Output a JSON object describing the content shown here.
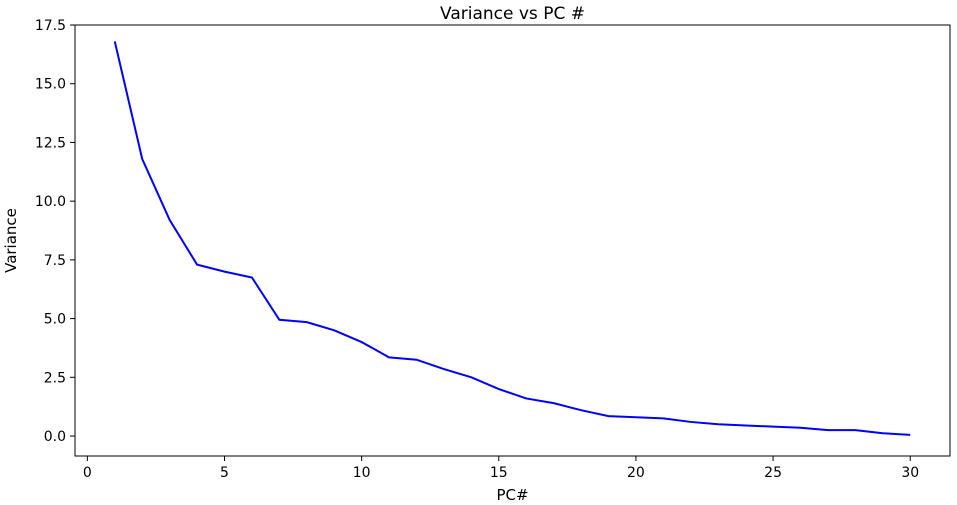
{
  "chart_data": {
    "type": "line",
    "title": "Variance vs PC #",
    "xlabel": "PC#",
    "ylabel": "Variance",
    "xlim": [
      -0.45,
      31.45
    ],
    "ylim": [
      -0.85,
      17.5
    ],
    "xticks": [
      0,
      5,
      10,
      15,
      20,
      25,
      30
    ],
    "yticks": [
      0.0,
      2.5,
      5.0,
      7.5,
      10.0,
      12.5,
      15.0,
      17.5
    ],
    "ytick_labels": [
      "0.0",
      "2.5",
      "5.0",
      "7.5",
      "10.0",
      "12.5",
      "15.0",
      "17.5"
    ],
    "grid": false,
    "series": [
      {
        "color": "#0000ff",
        "x": [
          1,
          2,
          3,
          4,
          5,
          6,
          7,
          8,
          9,
          10,
          11,
          12,
          13,
          14,
          15,
          16,
          17,
          18,
          19,
          20,
          21,
          22,
          23,
          24,
          25,
          26,
          27,
          28,
          29,
          30
        ],
        "values": [
          16.8,
          11.8,
          9.2,
          7.3,
          7.0,
          6.75,
          4.95,
          4.85,
          4.5,
          4.0,
          3.35,
          3.25,
          2.85,
          2.5,
          2.0,
          1.6,
          1.4,
          1.1,
          0.85,
          0.8,
          0.75,
          0.6,
          0.5,
          0.45,
          0.4,
          0.35,
          0.25,
          0.25,
          0.12,
          0.05
        ]
      }
    ]
  }
}
